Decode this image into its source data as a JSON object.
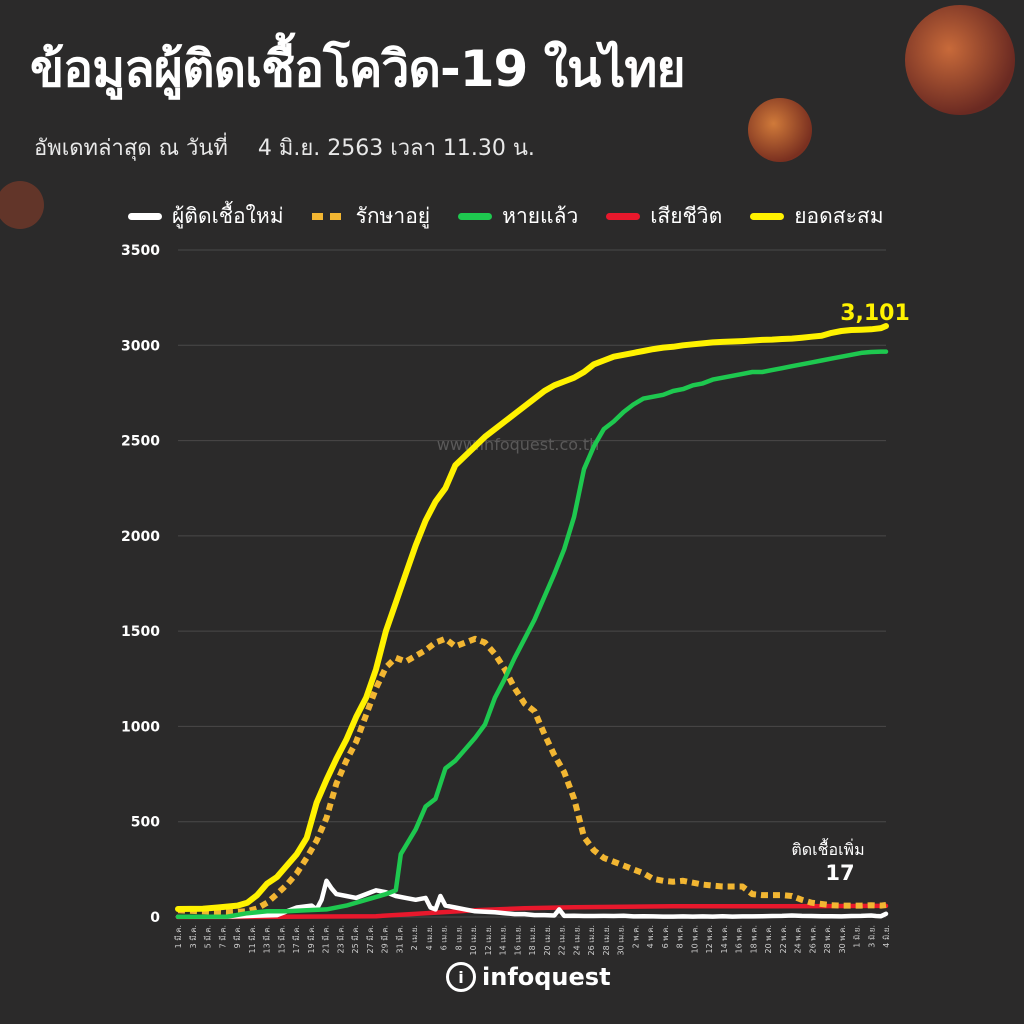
{
  "header": {
    "title": "ข้อมูลผู้ติดเชื้อโควิด-19 ในไทย",
    "update_label": "อัพเดทล่าสุด ณ วันที่",
    "update_value": "4 มิ.ย. 2563 เวลา 11.30 น."
  },
  "watermark": "www.infoquest.co.th",
  "footer": {
    "logo_text": "infoquest",
    "logo_mark": "i"
  },
  "annotations": {
    "total_value": "3,101",
    "new_cases_label": "ติดเชื้อเพิ่ม",
    "new_cases_value": "17"
  },
  "colors": {
    "background": "#2b2a2a",
    "new_cases": "#ffffff",
    "active": "#f2b632",
    "recovered": "#1ec84f",
    "deaths": "#e8182c",
    "cumulative": "#fff200",
    "grid": "#4a4949",
    "axis_text": "#e0e0e0"
  },
  "chart_data": {
    "type": "line",
    "title": "ข้อมูลผู้ติดเชื้อโควิด-19 ในไทย",
    "xlabel": "",
    "ylabel": "",
    "ylim": [
      0,
      3500
    ],
    "yticks": [
      0,
      500,
      1000,
      1500,
      2000,
      2500,
      3000,
      3500
    ],
    "grid": true,
    "legend_position": "top",
    "x_tick_labels": [
      "1 มี.ค.",
      "3 มี.ค.",
      "5 มี.ค.",
      "7 มี.ค.",
      "9 มี.ค.",
      "11 มี.ค.",
      "13 มี.ค.",
      "15 มี.ค.",
      "17 มี.ค.",
      "19 มี.ค.",
      "21 มี.ค.",
      "23 มี.ค.",
      "25 มี.ค.",
      "27 มี.ค.",
      "29 มี.ค.",
      "31 มี.ค.",
      "2 เม.ย.",
      "4 เม.ย.",
      "6 เม.ย.",
      "8 เม.ย.",
      "10 เม.ย.",
      "12 เม.ย.",
      "14 เม.ย.",
      "16 เม.ย.",
      "18 เม.ย.",
      "20 เม.ย.",
      "22 เม.ย.",
      "24 เม.ย.",
      "26 เม.ย.",
      "28 เม.ย.",
      "30 เม.ย.",
      "2 พ.ค.",
      "4 พ.ค.",
      "6 พ.ค.",
      "8 พ.ค.",
      "10 พ.ค.",
      "12 พ.ค.",
      "14 พ.ค.",
      "16 พ.ค.",
      "18 พ.ค.",
      "20 พ.ค.",
      "22 พ.ค.",
      "24 พ.ค.",
      "26 พ.ค.",
      "28 พ.ค.",
      "30 พ.ค.",
      "1 มิ.ย.",
      "3 มิ.ย.",
      "4 มิ.ย."
    ],
    "series": [
      {
        "name": "ผู้ติดเชื้อใหม่",
        "style": "solid",
        "color": "#ffffff",
        "points": [
          [
            0,
            1
          ],
          [
            10,
            2
          ],
          [
            20,
            10
          ],
          [
            24,
            50
          ],
          [
            27,
            60
          ],
          [
            28,
            40
          ],
          [
            29,
            90
          ],
          [
            30,
            190
          ],
          [
            31,
            150
          ],
          [
            32,
            120
          ],
          [
            34,
            110
          ],
          [
            36,
            100
          ],
          [
            38,
            120
          ],
          [
            40,
            140
          ],
          [
            42,
            130
          ],
          [
            44,
            110
          ],
          [
            46,
            100
          ],
          [
            48,
            90
          ],
          [
            50,
            100
          ],
          [
            51,
            50
          ],
          [
            52,
            40
          ],
          [
            53,
            110
          ],
          [
            54,
            60
          ],
          [
            56,
            50
          ],
          [
            58,
            40
          ],
          [
            60,
            30
          ],
          [
            62,
            28
          ],
          [
            64,
            25
          ],
          [
            66,
            20
          ],
          [
            68,
            15
          ],
          [
            70,
            15
          ],
          [
            72,
            10
          ],
          [
            74,
            10
          ],
          [
            76,
            8
          ],
          [
            77,
            40
          ],
          [
            78,
            6
          ],
          [
            80,
            7
          ],
          [
            82,
            5
          ],
          [
            84,
            5
          ],
          [
            86,
            6
          ],
          [
            88,
            5
          ],
          [
            90,
            7
          ],
          [
            92,
            3
          ],
          [
            94,
            4
          ],
          [
            96,
            3
          ],
          [
            98,
            2
          ],
          [
            100,
            2
          ],
          [
            102,
            3
          ],
          [
            104,
            2
          ],
          [
            106,
            3
          ],
          [
            108,
            2
          ],
          [
            110,
            4
          ],
          [
            112,
            2
          ],
          [
            114,
            3
          ],
          [
            116,
            3
          ],
          [
            118,
            4
          ],
          [
            120,
            5
          ],
          [
            122,
            6
          ],
          [
            124,
            8
          ],
          [
            126,
            6
          ],
          [
            128,
            5
          ],
          [
            130,
            4
          ],
          [
            132,
            4
          ],
          [
            134,
            3
          ],
          [
            136,
            5
          ],
          [
            138,
            6
          ],
          [
            140,
            8
          ],
          [
            141,
            5
          ],
          [
            142,
            4
          ],
          [
            143,
            17
          ]
        ]
      },
      {
        "name": "รักษาอยู่",
        "style": "dashed",
        "color": "#f2b632",
        "points": [
          [
            0,
            35
          ],
          [
            5,
            30
          ],
          [
            10,
            25
          ],
          [
            14,
            30
          ],
          [
            16,
            45
          ],
          [
            18,
            75
          ],
          [
            20,
            120
          ],
          [
            22,
            170
          ],
          [
            24,
            230
          ],
          [
            26,
            310
          ],
          [
            28,
            400
          ],
          [
            30,
            520
          ],
          [
            32,
            700
          ],
          [
            34,
            820
          ],
          [
            36,
            920
          ],
          [
            38,
            1060
          ],
          [
            40,
            1200
          ],
          [
            42,
            1310
          ],
          [
            44,
            1360
          ],
          [
            46,
            1340
          ],
          [
            48,
            1370
          ],
          [
            50,
            1400
          ],
          [
            52,
            1440
          ],
          [
            54,
            1460
          ],
          [
            56,
            1420
          ],
          [
            58,
            1440
          ],
          [
            60,
            1460
          ],
          [
            62,
            1440
          ],
          [
            64,
            1380
          ],
          [
            66,
            1300
          ],
          [
            68,
            1200
          ],
          [
            70,
            1120
          ],
          [
            72,
            1080
          ],
          [
            74,
            960
          ],
          [
            76,
            850
          ],
          [
            78,
            760
          ],
          [
            80,
            620
          ],
          [
            82,
            420
          ],
          [
            84,
            350
          ],
          [
            86,
            310
          ],
          [
            88,
            290
          ],
          [
            90,
            270
          ],
          [
            92,
            250
          ],
          [
            94,
            230
          ],
          [
            96,
            200
          ],
          [
            98,
            190
          ],
          [
            100,
            185
          ],
          [
            102,
            190
          ],
          [
            104,
            180
          ],
          [
            106,
            170
          ],
          [
            108,
            165
          ],
          [
            110,
            160
          ],
          [
            112,
            160
          ],
          [
            114,
            160
          ],
          [
            116,
            120
          ],
          [
            118,
            115
          ],
          [
            120,
            115
          ],
          [
            122,
            115
          ],
          [
            124,
            110
          ],
          [
            126,
            90
          ],
          [
            128,
            75
          ],
          [
            130,
            68
          ],
          [
            132,
            62
          ],
          [
            134,
            60
          ],
          [
            136,
            60
          ],
          [
            138,
            60
          ],
          [
            140,
            62
          ],
          [
            142,
            60
          ],
          [
            143,
            63
          ]
        ]
      },
      {
        "name": "หายแล้ว",
        "style": "solid",
        "color": "#1ec84f",
        "points": [
          [
            0,
            1
          ],
          [
            10,
            2
          ],
          [
            14,
            20
          ],
          [
            18,
            30
          ],
          [
            22,
            30
          ],
          [
            26,
            35
          ],
          [
            30,
            40
          ],
          [
            34,
            60
          ],
          [
            38,
            90
          ],
          [
            42,
            120
          ],
          [
            44,
            140
          ],
          [
            45,
            330
          ],
          [
            48,
            460
          ],
          [
            50,
            580
          ],
          [
            52,
            620
          ],
          [
            54,
            780
          ],
          [
            56,
            820
          ],
          [
            58,
            880
          ],
          [
            60,
            940
          ],
          [
            62,
            1010
          ],
          [
            64,
            1150
          ],
          [
            66,
            1250
          ],
          [
            68,
            1360
          ],
          [
            70,
            1460
          ],
          [
            72,
            1560
          ],
          [
            74,
            1680
          ],
          [
            76,
            1800
          ],
          [
            78,
            1930
          ],
          [
            80,
            2100
          ],
          [
            82,
            2350
          ],
          [
            84,
            2470
          ],
          [
            86,
            2560
          ],
          [
            88,
            2600
          ],
          [
            90,
            2650
          ],
          [
            92,
            2690
          ],
          [
            94,
            2720
          ],
          [
            96,
            2730
          ],
          [
            98,
            2740
          ],
          [
            100,
            2760
          ],
          [
            102,
            2770
          ],
          [
            104,
            2790
          ],
          [
            106,
            2800
          ],
          [
            108,
            2820
          ],
          [
            110,
            2830
          ],
          [
            112,
            2840
          ],
          [
            114,
            2850
          ],
          [
            116,
            2860
          ],
          [
            118,
            2860
          ],
          [
            120,
            2870
          ],
          [
            122,
            2880
          ],
          [
            124,
            2890
          ],
          [
            126,
            2900
          ],
          [
            128,
            2910
          ],
          [
            130,
            2920
          ],
          [
            132,
            2930
          ],
          [
            134,
            2940
          ],
          [
            136,
            2950
          ],
          [
            138,
            2960
          ],
          [
            140,
            2965
          ],
          [
            142,
            2967
          ],
          [
            143,
            2967
          ]
        ]
      },
      {
        "name": "เสียชีวิต",
        "style": "solid",
        "color": "#e8182c",
        "points": [
          [
            0,
            0
          ],
          [
            20,
            1
          ],
          [
            40,
            4
          ],
          [
            50,
            20
          ],
          [
            60,
            35
          ],
          [
            70,
            46
          ],
          [
            80,
            51
          ],
          [
            90,
            54
          ],
          [
            100,
            56
          ],
          [
            110,
            56
          ],
          [
            120,
            56
          ],
          [
            130,
            57
          ],
          [
            140,
            58
          ],
          [
            143,
            58
          ]
        ]
      },
      {
        "name": "ยอดสะสม",
        "style": "solid",
        "color": "#fff200",
        "points": [
          [
            0,
            42
          ],
          [
            5,
            43
          ],
          [
            8,
            50
          ],
          [
            12,
            60
          ],
          [
            14,
            75
          ],
          [
            16,
            115
          ],
          [
            18,
            175
          ],
          [
            20,
            210
          ],
          [
            22,
            270
          ],
          [
            24,
            330
          ],
          [
            26,
            415
          ],
          [
            28,
            600
          ],
          [
            30,
            720
          ],
          [
            32,
            830
          ],
          [
            34,
            930
          ],
          [
            36,
            1050
          ],
          [
            38,
            1150
          ],
          [
            40,
            1300
          ],
          [
            42,
            1500
          ],
          [
            44,
            1650
          ],
          [
            46,
            1800
          ],
          [
            48,
            1950
          ],
          [
            50,
            2080
          ],
          [
            52,
            2180
          ],
          [
            54,
            2250
          ],
          [
            56,
            2370
          ],
          [
            58,
            2420
          ],
          [
            60,
            2470
          ],
          [
            62,
            2520
          ],
          [
            64,
            2560
          ],
          [
            66,
            2600
          ],
          [
            68,
            2640
          ],
          [
            70,
            2680
          ],
          [
            72,
            2720
          ],
          [
            74,
            2760
          ],
          [
            76,
            2790
          ],
          [
            78,
            2810
          ],
          [
            80,
            2830
          ],
          [
            82,
            2860
          ],
          [
            84,
            2900
          ],
          [
            86,
            2920
          ],
          [
            88,
            2940
          ],
          [
            90,
            2950
          ],
          [
            92,
            2960
          ],
          [
            94,
            2970
          ],
          [
            96,
            2980
          ],
          [
            98,
            2988
          ],
          [
            100,
            2992
          ],
          [
            102,
            3000
          ],
          [
            104,
            3005
          ],
          [
            106,
            3010
          ],
          [
            108,
            3015
          ],
          [
            110,
            3018
          ],
          [
            112,
            3020
          ],
          [
            114,
            3022
          ],
          [
            116,
            3025
          ],
          [
            118,
            3028
          ],
          [
            120,
            3030
          ],
          [
            122,
            3033
          ],
          [
            124,
            3035
          ],
          [
            126,
            3040
          ],
          [
            128,
            3045
          ],
          [
            130,
            3050
          ],
          [
            132,
            3065
          ],
          [
            134,
            3075
          ],
          [
            136,
            3080
          ],
          [
            138,
            3082
          ],
          [
            140,
            3084
          ],
          [
            142,
            3090
          ],
          [
            143,
            3101
          ]
        ]
      }
    ]
  }
}
